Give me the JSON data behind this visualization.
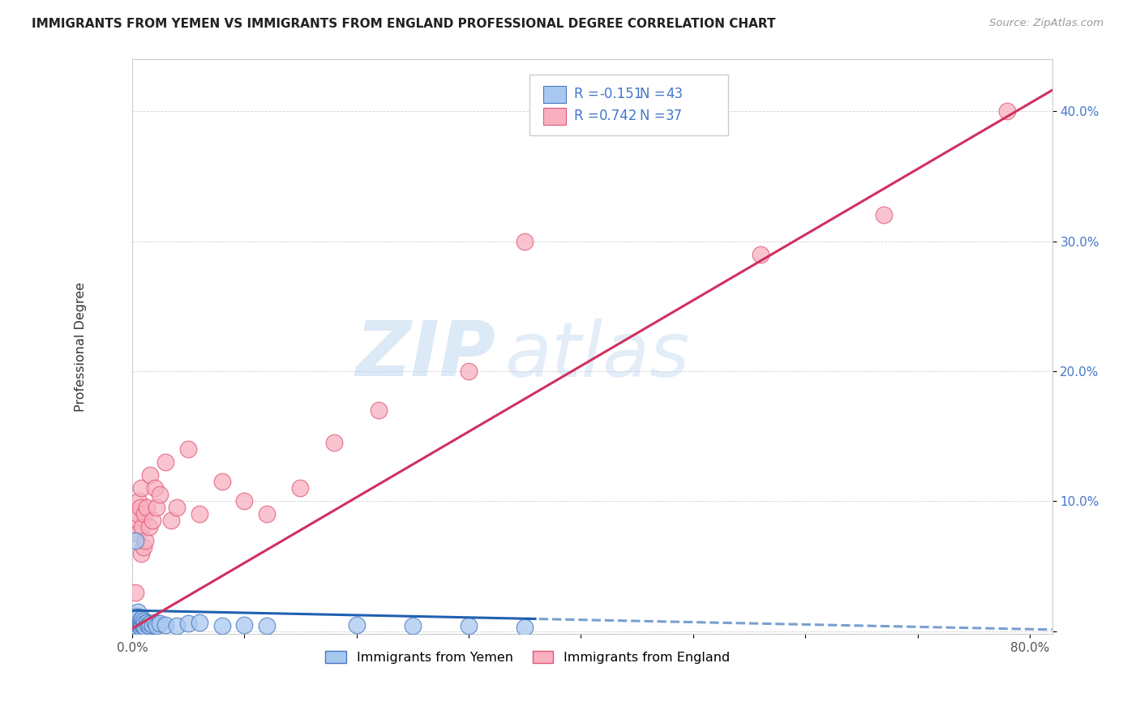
{
  "title": "IMMIGRANTS FROM YEMEN VS IMMIGRANTS FROM ENGLAND PROFESSIONAL DEGREE CORRELATION CHART",
  "source": "Source: ZipAtlas.com",
  "ylabel": "Professional Degree",
  "xlim": [
    0.0,
    0.82
  ],
  "ylim": [
    -0.002,
    0.44
  ],
  "xticks": [
    0.0,
    0.1,
    0.2,
    0.3,
    0.4,
    0.5,
    0.6,
    0.7,
    0.8
  ],
  "yticks": [
    0.0,
    0.1,
    0.2,
    0.3,
    0.4
  ],
  "ytick_labels": [
    "",
    "10.0%",
    "20.0%",
    "30.0%",
    "40.0%"
  ],
  "xtick_labels": [
    "0.0%",
    "",
    "",
    "",
    "",
    "",
    "",
    "",
    "80.0%"
  ],
  "legend_label1": "Immigrants from Yemen",
  "legend_label2": "Immigrants from England",
  "color_yemen_fill": "#A8C8F0",
  "color_yemen_edge": "#4878C0",
  "color_england_fill": "#F8B0C0",
  "color_england_edge": "#E05878",
  "color_trend_yemen": "#2060B0",
  "color_trend_england": "#D03060",
  "legend_text_color": "#4477CC",
  "watermark_color": "#C8DCF0",
  "trend_yemen_m": -0.018,
  "trend_yemen_b": 0.016,
  "trend_england_m": 0.505,
  "trend_england_b": 0.002,
  "yemen_x": [
    0.001,
    0.002,
    0.002,
    0.003,
    0.003,
    0.003,
    0.004,
    0.004,
    0.005,
    0.005,
    0.005,
    0.006,
    0.006,
    0.007,
    0.007,
    0.008,
    0.008,
    0.009,
    0.009,
    0.01,
    0.01,
    0.011,
    0.012,
    0.013,
    0.014,
    0.015,
    0.016,
    0.018,
    0.02,
    0.022,
    0.025,
    0.03,
    0.04,
    0.05,
    0.06,
    0.08,
    0.1,
    0.12,
    0.2,
    0.25,
    0.3,
    0.35,
    0.003
  ],
  "yemen_y": [
    0.01,
    0.005,
    0.008,
    0.002,
    0.006,
    0.012,
    0.004,
    0.009,
    0.003,
    0.007,
    0.015,
    0.005,
    0.011,
    0.004,
    0.008,
    0.003,
    0.007,
    0.005,
    0.01,
    0.004,
    0.008,
    0.006,
    0.003,
    0.007,
    0.005,
    0.004,
    0.006,
    0.005,
    0.007,
    0.004,
    0.006,
    0.005,
    0.004,
    0.006,
    0.007,
    0.004,
    0.005,
    0.004,
    0.005,
    0.004,
    0.004,
    0.003,
    0.07
  ],
  "england_x": [
    0.002,
    0.003,
    0.003,
    0.004,
    0.005,
    0.005,
    0.006,
    0.007,
    0.008,
    0.008,
    0.009,
    0.01,
    0.011,
    0.012,
    0.013,
    0.015,
    0.016,
    0.018,
    0.02,
    0.022,
    0.025,
    0.03,
    0.035,
    0.04,
    0.05,
    0.06,
    0.08,
    0.1,
    0.12,
    0.15,
    0.18,
    0.22,
    0.3,
    0.35,
    0.56,
    0.67,
    0.78
  ],
  "england_y": [
    0.006,
    0.03,
    0.008,
    0.085,
    0.09,
    0.075,
    0.1,
    0.095,
    0.11,
    0.06,
    0.08,
    0.065,
    0.09,
    0.07,
    0.095,
    0.08,
    0.12,
    0.085,
    0.11,
    0.095,
    0.105,
    0.13,
    0.085,
    0.095,
    0.14,
    0.09,
    0.115,
    0.1,
    0.09,
    0.11,
    0.145,
    0.17,
    0.2,
    0.3,
    0.29,
    0.32,
    0.4
  ]
}
